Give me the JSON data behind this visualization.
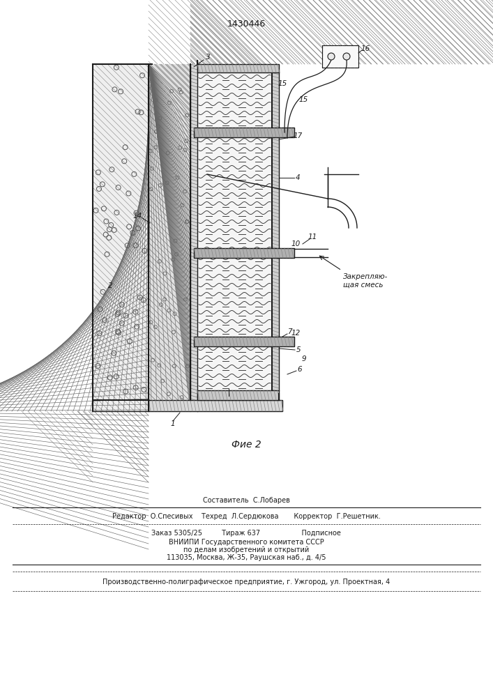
{
  "title": "1430446",
  "fig_label": "Фие 2",
  "bg_color": "#ffffff",
  "lc": "#1a1a1a",
  "footer": {
    "line1": "Составитель  С.Лобарев",
    "line2": "Редактор  О.Спесивых    Техред  Л.Сердюкова       Корректор  Г.Решетник.",
    "line3": "Заказ 5305/25         Тираж 637                   Подписное",
    "line4": "ВНИИПИ Государственного комитета СССР",
    "line5": "по делам изобретений и открытий",
    "line6": "113035, Москва, Ж-35, Раушская наб., д. 4/5",
    "line7": "Производственно-полиграфическое предприятие, г. Ужгород, ул. Проектная, 4"
  },
  "zakr": "Закрепляю-\nщая смесь"
}
